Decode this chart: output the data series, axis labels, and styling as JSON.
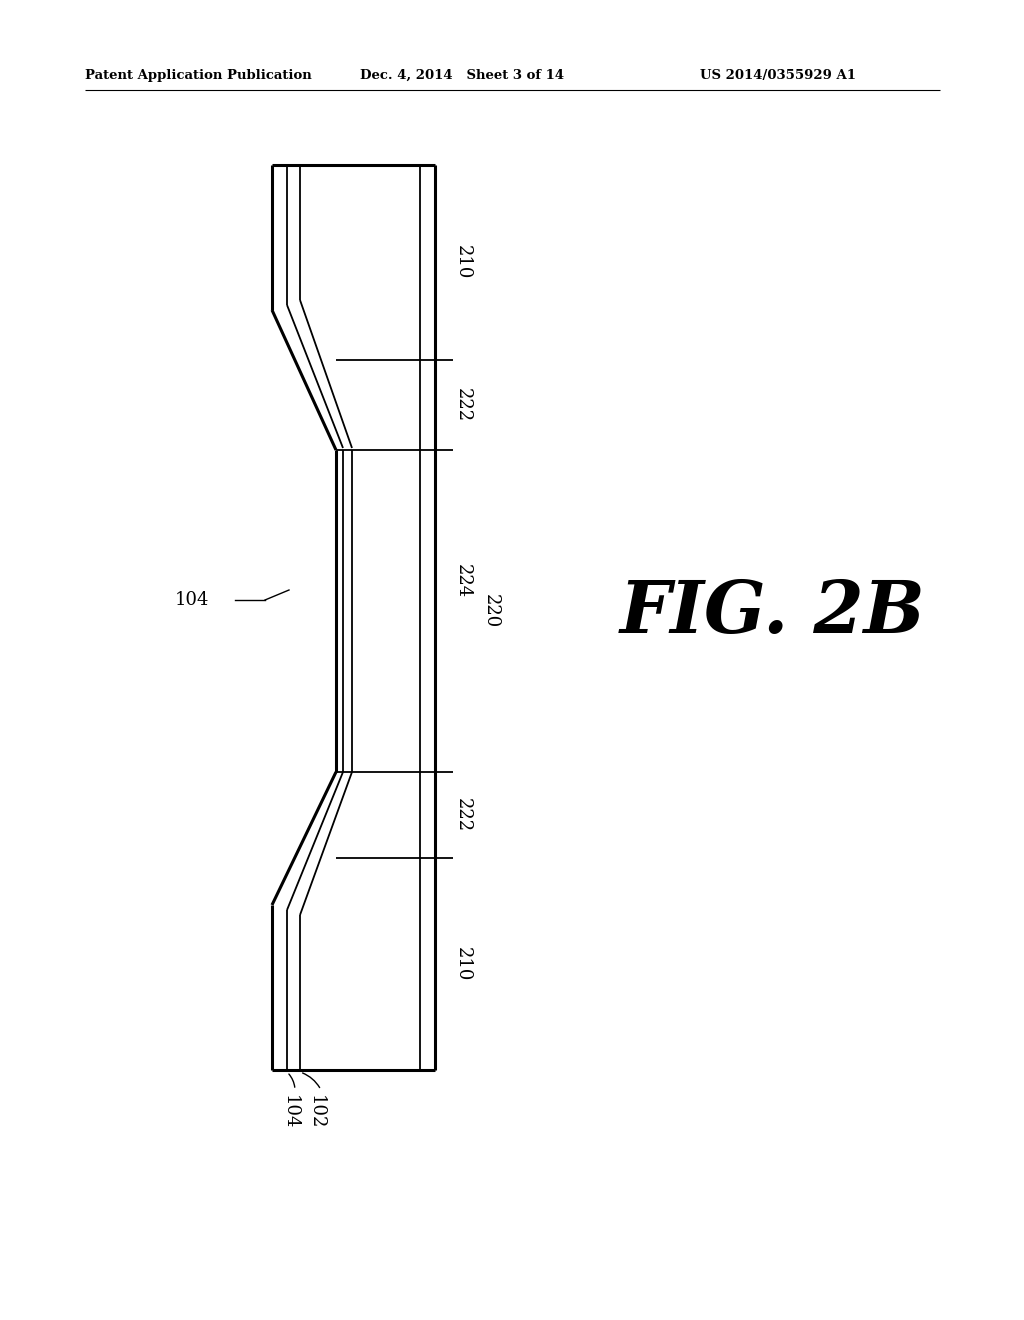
{
  "bg_color": "#ffffff",
  "line_color": "#000000",
  "header_left": "Patent Application Publication",
  "header_mid": "Dec. 4, 2014   Sheet 3 of 14",
  "header_right": "US 2014/0355929 A1",
  "fig_label": "FIG. 2B",
  "labels": {
    "210_top": "210",
    "222_top": "222",
    "224": "224",
    "220": "220",
    "104_mid": "104",
    "222_bot": "222",
    "210_bot": "210",
    "104_bot": "104",
    "102": "102"
  }
}
